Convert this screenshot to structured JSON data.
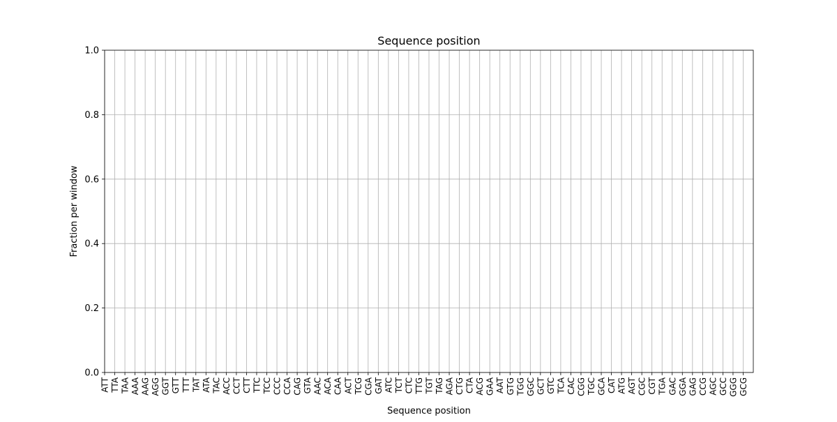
{
  "chart_data": {
    "type": "bar",
    "title": "Sequence position",
    "xlabel": "Sequence position",
    "ylabel": "Fraction per window",
    "ylim": [
      0,
      1
    ],
    "yticks": [
      "0.0",
      "0.2",
      "0.4",
      "0.6",
      "0.8",
      "1.0"
    ],
    "grid": true,
    "categories": [
      "ATT",
      "TTA",
      "TAA",
      "AAA",
      "AAG",
      "AGG",
      "GGT",
      "GTT",
      "TTT",
      "TAT",
      "ATA",
      "TAC",
      "ACC",
      "CCT",
      "CTT",
      "TTC",
      "TCC",
      "CCC",
      "CCA",
      "CAG",
      "GTA",
      "AAC",
      "ACA",
      "CAA",
      "ACT",
      "TCG",
      "CGA",
      "GAT",
      "ATC",
      "TCT",
      "CTC",
      "TTG",
      "TGT",
      "TAG",
      "AGA",
      "CTG",
      "CTA",
      "ACG",
      "GAA",
      "AAT",
      "GTG",
      "TGG",
      "GGC",
      "GCT",
      "GTC",
      "TCA",
      "CAC",
      "CGG",
      "TGC",
      "GCA",
      "CAT",
      "ATG",
      "AGT",
      "CGC",
      "CGT",
      "TGA",
      "GAC",
      "GGA",
      "GAG",
      "CCG",
      "AGC",
      "GCC",
      "GGG",
      "GCG"
    ],
    "series": []
  }
}
